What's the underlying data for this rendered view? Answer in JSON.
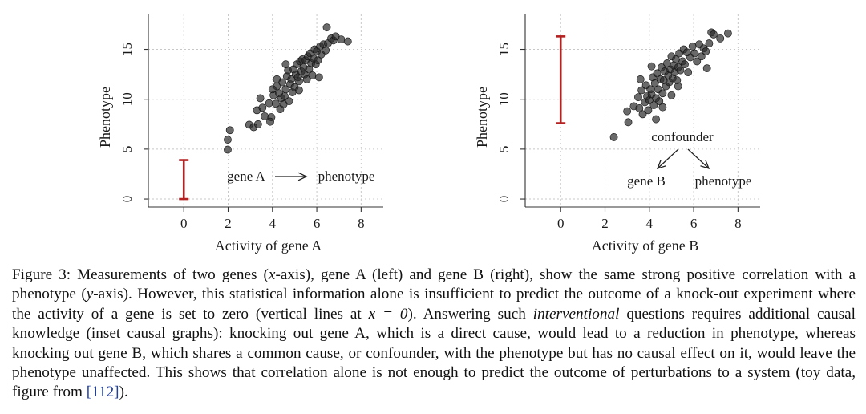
{
  "chart_data": [
    {
      "type": "scatter",
      "title": "",
      "xlabel": "Activity of gene A",
      "ylabel": "Phenotype",
      "xlim": [
        -1.6,
        9.0
      ],
      "ylim": [
        -0.8,
        18.5
      ],
      "xticks": [
        0,
        2,
        4,
        6,
        8
      ],
      "yticks": [
        0,
        5,
        10,
        15
      ],
      "grid": true,
      "point_color": "#2b2b2b",
      "interval_color": "#b22222",
      "intervention": {
        "x": 0,
        "y_low": 0.0,
        "y_high": 3.9
      },
      "inset": {
        "cause": "gene A",
        "effect": "phenotype"
      },
      "points": [
        [
          1.98,
          4.95
        ],
        [
          1.98,
          5.95
        ],
        [
          2.08,
          6.9
        ],
        [
          2.95,
          7.45
        ],
        [
          3.15,
          7.2
        ],
        [
          3.35,
          7.5
        ],
        [
          3.3,
          8.9
        ],
        [
          3.55,
          9.15
        ],
        [
          3.65,
          8.3
        ],
        [
          3.85,
          9.6
        ],
        [
          3.95,
          8.2
        ],
        [
          3.9,
          7.75
        ],
        [
          4.05,
          10.4
        ],
        [
          4.15,
          9.55
        ],
        [
          4.2,
          11.3
        ],
        [
          4.2,
          12.0
        ],
        [
          4.3,
          10.6
        ],
        [
          4.35,
          9.0
        ],
        [
          4.4,
          10.1
        ],
        [
          4.45,
          11.7
        ],
        [
          4.5,
          9.5
        ],
        [
          4.55,
          10.3
        ],
        [
          4.6,
          11.0
        ],
        [
          4.65,
          12.3
        ],
        [
          4.7,
          12.9
        ],
        [
          4.75,
          9.8
        ],
        [
          4.8,
          11.5
        ],
        [
          4.85,
          12.0
        ],
        [
          4.9,
          10.7
        ],
        [
          4.95,
          13.0
        ],
        [
          5.0,
          11.2
        ],
        [
          5.05,
          12.5
        ],
        [
          5.1,
          13.5
        ],
        [
          5.15,
          12.2
        ],
        [
          5.2,
          11.8
        ],
        [
          5.25,
          13.8
        ],
        [
          5.3,
          12.8
        ],
        [
          5.35,
          14.0
        ],
        [
          5.4,
          13.2
        ],
        [
          5.45,
          12.5
        ],
        [
          5.5,
          13.9
        ],
        [
          5.55,
          12.0
        ],
        [
          5.6,
          14.3
        ],
        [
          5.65,
          13.0
        ],
        [
          5.7,
          14.6
        ],
        [
          5.75,
          13.6
        ],
        [
          5.8,
          12.4
        ],
        [
          5.85,
          14.1
        ],
        [
          5.9,
          15.0
        ],
        [
          5.95,
          13.5
        ],
        [
          6.0,
          14.8
        ],
        [
          6.05,
          13.9
        ],
        [
          6.1,
          12.2
        ],
        [
          6.15,
          15.3
        ],
        [
          6.2,
          14.5
        ],
        [
          6.3,
          15.5
        ],
        [
          6.4,
          14.9
        ],
        [
          6.5,
          15.6
        ],
        [
          6.65,
          16.1
        ],
        [
          6.75,
          15.9
        ],
        [
          6.85,
          16.3
        ],
        [
          7.1,
          16.0
        ],
        [
          6.45,
          17.2
        ],
        [
          7.4,
          15.8
        ],
        [
          3.45,
          10.1
        ],
        [
          4.0,
          11.0
        ],
        [
          5.2,
          10.9
        ],
        [
          4.6,
          13.5
        ]
      ]
    },
    {
      "type": "scatter",
      "title": "",
      "xlabel": "Activity of gene B",
      "ylabel": "Phenotype",
      "xlim": [
        -1.6,
        9.0
      ],
      "ylim": [
        -0.8,
        18.5
      ],
      "xticks": [
        0,
        2,
        4,
        6,
        8
      ],
      "yticks": [
        0,
        5,
        10,
        15
      ],
      "grid": true,
      "point_color": "#2b2b2b",
      "interval_color": "#b22222",
      "intervention": {
        "x": 0,
        "y_low": 7.6,
        "y_high": 16.3
      },
      "inset": {
        "cause": "confounder",
        "effect_left": "gene B",
        "effect_right": "phenotype"
      },
      "points": [
        [
          2.4,
          6.2
        ],
        [
          3.0,
          8.8
        ],
        [
          3.05,
          7.7
        ],
        [
          3.3,
          9.3
        ],
        [
          3.5,
          10.2
        ],
        [
          3.55,
          9.1
        ],
        [
          3.65,
          10.9
        ],
        [
          3.7,
          8.5
        ],
        [
          3.8,
          9.7
        ],
        [
          3.85,
          11.4
        ],
        [
          3.9,
          10.3
        ],
        [
          3.95,
          8.9
        ],
        [
          4.0,
          9.9
        ],
        [
          4.05,
          11.0
        ],
        [
          4.1,
          10.5
        ],
        [
          4.15,
          12.2
        ],
        [
          4.2,
          9.4
        ],
        [
          4.25,
          11.6
        ],
        [
          4.3,
          10.1
        ],
        [
          4.35,
          12.6
        ],
        [
          4.4,
          11.0
        ],
        [
          4.45,
          9.8
        ],
        [
          4.5,
          12.0
        ],
        [
          4.55,
          13.2
        ],
        [
          4.6,
          10.6
        ],
        [
          4.65,
          11.9
        ],
        [
          4.7,
          12.8
        ],
        [
          4.75,
          11.3
        ],
        [
          4.8,
          13.6
        ],
        [
          4.85,
          12.4
        ],
        [
          4.9,
          11.7
        ],
        [
          4.95,
          13.0
        ],
        [
          5.0,
          14.3
        ],
        [
          5.05,
          12.1
        ],
        [
          5.1,
          13.4
        ],
        [
          5.15,
          12.7
        ],
        [
          5.2,
          14.0
        ],
        [
          5.25,
          11.9
        ],
        [
          5.3,
          13.2
        ],
        [
          5.35,
          14.6
        ],
        [
          5.4,
          12.9
        ],
        [
          5.5,
          13.8
        ],
        [
          5.55,
          15.0
        ],
        [
          5.6,
          13.5
        ],
        [
          5.7,
          14.7
        ],
        [
          5.75,
          12.7
        ],
        [
          5.85,
          14.2
        ],
        [
          5.95,
          15.3
        ],
        [
          6.05,
          14.6
        ],
        [
          6.15,
          13.8
        ],
        [
          6.25,
          15.5
        ],
        [
          6.35,
          14.3
        ],
        [
          6.45,
          15.1
        ],
        [
          6.55,
          14.8
        ],
        [
          6.6,
          13.1
        ],
        [
          6.7,
          15.6
        ],
        [
          6.8,
          16.7
        ],
        [
          6.9,
          16.5
        ],
        [
          7.2,
          16.1
        ],
        [
          7.55,
          16.6
        ],
        [
          4.3,
          8.0
        ],
        [
          4.6,
          9.2
        ],
        [
          5.0,
          10.4
        ],
        [
          4.1,
          13.3
        ],
        [
          3.6,
          12.0
        ],
        [
          5.3,
          11.3
        ]
      ]
    }
  ],
  "caption": {
    "lead": "Figure 3: Measurements of two genes (",
    "x_var": "x",
    "part2": "-axis), gene A (left) and gene B (right), show the same strong positive correlation with a phenotype (",
    "y_var": "y",
    "part3": "-axis). However, this statistical information alone is insufficient to predict the outcome of a knock-out experiment where the activity of a gene is set to zero (vertical lines at ",
    "x_eq": "x = 0",
    "part4": "). Answering such ",
    "emph": "interventional",
    "part5": " questions requires additional causal knowledge (inset causal graphs): knocking out gene A, which is a direct cause, would lead to a reduction in phenotype, whereas knocking out gene B, which shares a common cause, or confounder, with the phenotype but has no causal effect on it, would leave the phenotype unaffected. This shows that correlation alone is not enough to predict the outcome of perturbations to a system (toy data, figure from ",
    "cite": "[112]",
    "tail": ")."
  }
}
